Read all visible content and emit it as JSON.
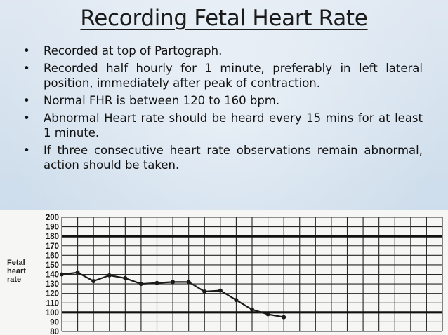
{
  "slide": {
    "title": "Recording Fetal Heart Rate",
    "bullets": [
      "Recorded at top of Partograph.",
      "Recorded half hourly for 1 minute, preferably in left lateral position, immediately after peak of contraction.",
      "Normal FHR is between 120 to 160 bpm.",
      "Abnormal Heart rate should be heard every 15 mins for at least 1 minute.",
      "If three consecutive heart rate observations remain abnormal, action should be taken."
    ]
  },
  "chart_data": {
    "type": "line",
    "ylabel": [
      "Fetal",
      "heart",
      "rate"
    ],
    "ylim": [
      80,
      200
    ],
    "yticks": [
      200,
      190,
      180,
      170,
      160,
      150,
      140,
      130,
      120,
      110,
      100,
      90,
      80
    ],
    "reference_lines": [
      180,
      100
    ],
    "columns": 24,
    "series": [
      {
        "name": "FHR",
        "x": [
          0,
          1,
          2,
          3,
          4,
          5,
          6,
          7,
          8,
          9,
          10,
          11,
          12,
          13,
          14
        ],
        "values": [
          140,
          142,
          133,
          139,
          136,
          130,
          131,
          132,
          132,
          122,
          123,
          113,
          103,
          98,
          95
        ]
      }
    ],
    "colors": {
      "line": "#1a1a1a",
      "grid": "#262626",
      "paper": "#f6f6f4"
    }
  }
}
